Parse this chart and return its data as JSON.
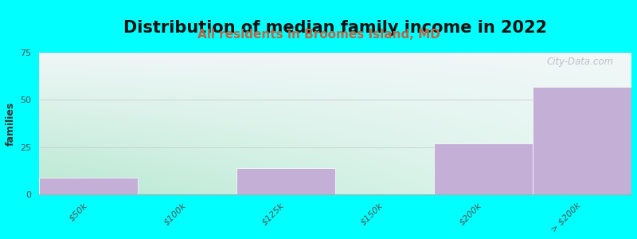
{
  "title": "Distribution of median family income in 2022",
  "subtitle": "All residents in Broomes Island, MD",
  "ylabel": "families",
  "categories": [
    "$50k",
    "$100k",
    "$125k",
    "$150k",
    "$200k",
    "> $200k"
  ],
  "bar_labels": [
    "$50k",
    "$100k",
    "$125k",
    "$150k",
    "$200k",
    "> $200k"
  ],
  "values": [
    9,
    0,
    14,
    0,
    27,
    57
  ],
  "bar_color": "#c4afd6",
  "bar_edge_color": "#c4afd6",
  "background_color": "#00ffff",
  "plot_bg_color_topleft": "#b8e8d0",
  "plot_bg_color_bottomright": "#f0f4f8",
  "title_fontsize": 15,
  "subtitle_fontsize": 11,
  "subtitle_color": "#bb6644",
  "ylabel_fontsize": 9,
  "tick_label_fontsize": 8,
  "ylim": [
    0,
    75
  ],
  "yticks": [
    0,
    25,
    50,
    75
  ],
  "grid_color": "#cccccc",
  "watermark": "City-Data.com",
  "watermark_color": "#b0b8c0"
}
